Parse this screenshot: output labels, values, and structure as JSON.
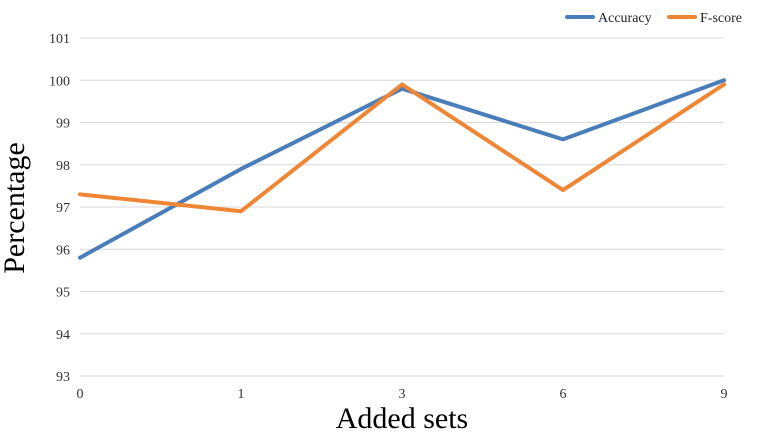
{
  "chart_data": {
    "type": "line",
    "categories": [
      "0",
      "1",
      "3",
      "6",
      "9"
    ],
    "series": [
      {
        "name": "Accuracy",
        "values": [
          95.8,
          97.9,
          99.8,
          98.6,
          100.0
        ],
        "color": "#4a7ebb"
      },
      {
        "name": "F-score",
        "values": [
          97.3,
          96.9,
          99.9,
          97.4,
          99.9
        ],
        "color": "#ee8636"
      }
    ],
    "title": "",
    "xlabel": "Added sets",
    "ylabel": "Percentage",
    "ylim": [
      93,
      101
    ],
    "yticks": [
      "93",
      "94",
      "95",
      "96",
      "97",
      "98",
      "99",
      "100",
      "101"
    ],
    "grid": true,
    "legend_position": "top-right"
  }
}
